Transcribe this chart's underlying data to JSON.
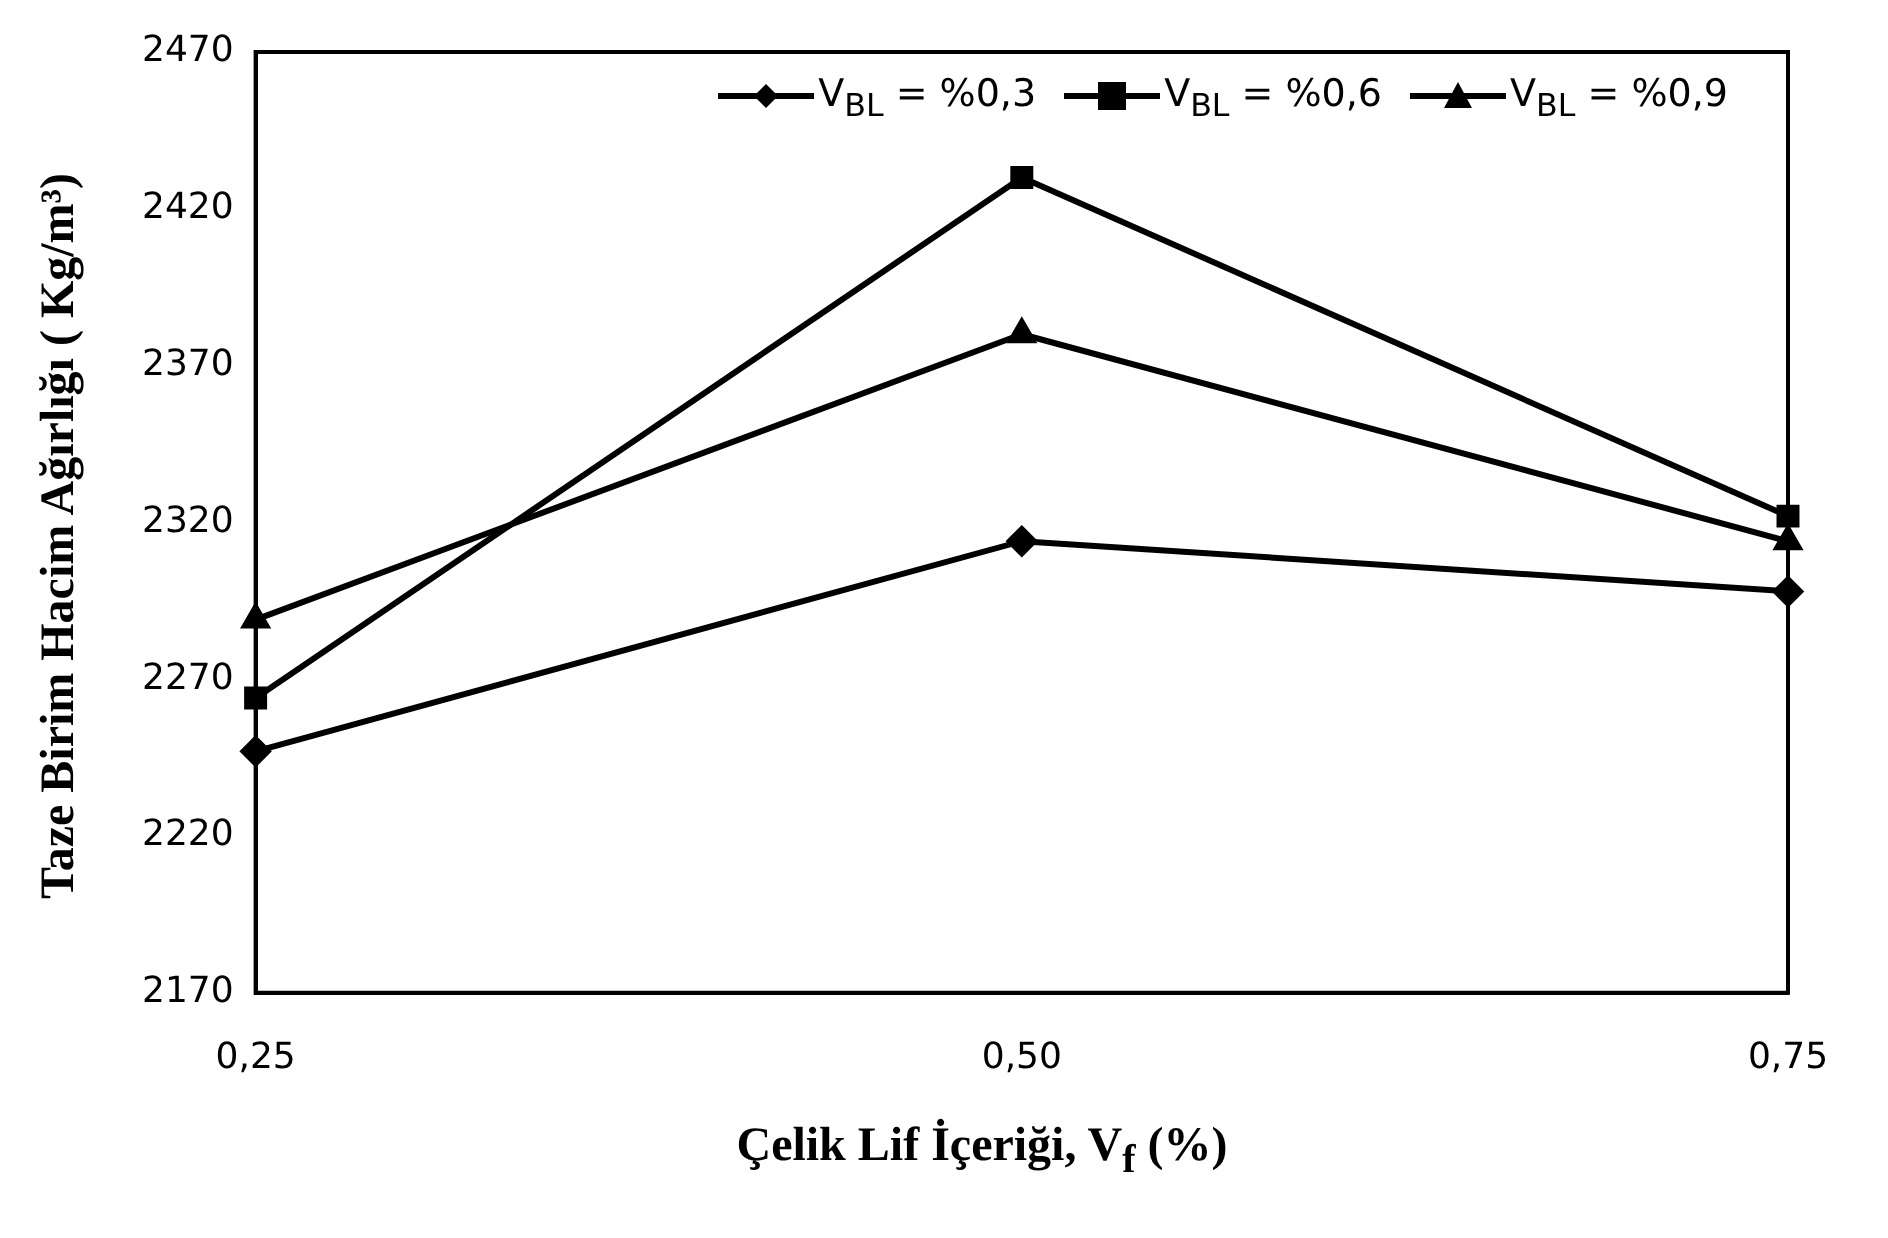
{
  "chart_data": {
    "type": "line",
    "xlabel": "Çelik Lif İçeriği, V$_{f}$ (%)",
    "ylabel": "Taze Birim Hacim Ağırlığı ( Kg/m³)",
    "x": [
      0.25,
      0.5,
      0.75
    ],
    "series": [
      {
        "name": "V$_{BL}$ = %0,3",
        "color": "#000000",
        "marker": "diamond",
        "values": [
          2247,
          2314,
          2298
        ]
      },
      {
        "name": "V$_{BL}$ = %0,6",
        "color": "#000000",
        "marker": "square",
        "values": [
          2264,
          2430,
          2322
        ]
      },
      {
        "name": "V$_{BL}$ = %0,9",
        "color": "#000000",
        "marker": "triangle",
        "values": [
          2289,
          2380,
          2314
        ]
      }
    ],
    "xlim": [
      0.25,
      0.75
    ],
    "xticks": [
      {
        "value": 0.25,
        "label": "0,25"
      },
      {
        "value": 0.5,
        "label": "0,50"
      },
      {
        "value": 0.75,
        "label": "0,75"
      }
    ],
    "ylim": [
      2170,
      2470
    ],
    "yticks": [
      2170,
      2220,
      2270,
      2320,
      2370,
      2420,
      2470
    ],
    "grid": false,
    "legend": "top right",
    "line_style": "solid"
  }
}
